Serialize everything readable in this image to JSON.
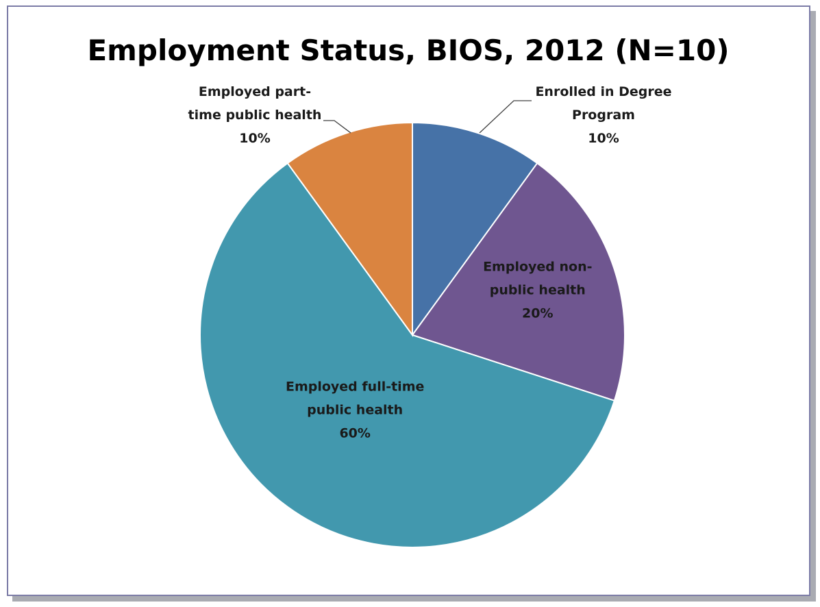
{
  "chart_data": {
    "type": "pie",
    "title": "Employment Status, BIOS, 2012 (N=10)",
    "start_angle_deg": 0,
    "direction": "clockwise",
    "legend": "none",
    "slices": [
      {
        "key": "enrolled",
        "label_lines": [
          "Enrolled in Degree",
          "Program"
        ],
        "value": 10,
        "percent_label": "10%",
        "color": "#4672a7",
        "label_outside": true
      },
      {
        "key": "nonpublic",
        "label_lines": [
          "Employed non-",
          "public health"
        ],
        "value": 20,
        "percent_label": "20%",
        "color": "#6f5690",
        "label_outside": false
      },
      {
        "key": "fulltime",
        "label_lines": [
          "Employed full-time",
          "public health"
        ],
        "value": 60,
        "percent_label": "60%",
        "color": "#4298ae",
        "label_outside": false
      },
      {
        "key": "parttime",
        "label_lines": [
          "Employed part-",
          "time public health"
        ],
        "value": 10,
        "percent_label": "10%",
        "color": "#da8440",
        "label_outside": true
      }
    ]
  }
}
